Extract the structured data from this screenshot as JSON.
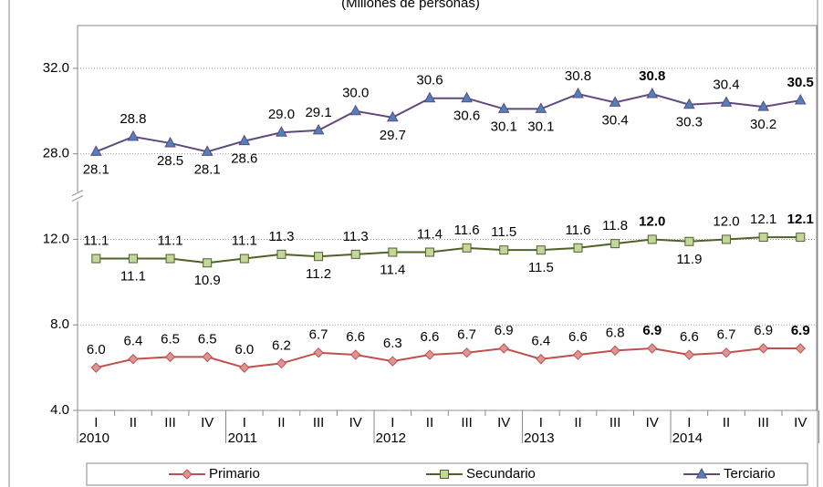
{
  "chart_data": {
    "type": "line",
    "title": "(Millones de personas)",
    "categories": [
      "I",
      "II",
      "III",
      "IV",
      "I",
      "II",
      "III",
      "IV",
      "I",
      "II",
      "III",
      "IV",
      "I",
      "II",
      "III",
      "IV",
      "I",
      "II",
      "III",
      "IV"
    ],
    "category_groups": [
      "2010",
      "2011",
      "2012",
      "2013",
      "2014"
    ],
    "ylim": [
      4,
      34
    ],
    "ybreak": [
      14,
      26
    ],
    "yticks": [
      {
        "value": 4,
        "label": "4.0"
      },
      {
        "value": 8,
        "label": "8.0"
      },
      {
        "value": 12,
        "label": "12.0"
      },
      {
        "value": 28,
        "label": "28.0"
      },
      {
        "value": 32,
        "label": "32.0"
      }
    ],
    "grid": true,
    "legend": "bottom",
    "series": [
      {
        "name": "Primario",
        "color": "#c0504d",
        "marker_color": "#d99694",
        "marker": "diamond",
        "values": [
          6.0,
          6.4,
          6.5,
          6.5,
          6.0,
          6.2,
          6.7,
          6.6,
          6.3,
          6.6,
          6.7,
          6.9,
          6.4,
          6.6,
          6.8,
          6.9,
          6.6,
          6.7,
          6.9,
          6.9
        ],
        "value_labels": [
          "6.0",
          "6.4",
          "6.5",
          "6.5",
          "6.0",
          "6.2",
          "6.7",
          "6.6",
          "6.3",
          "6.6",
          "6.7",
          "6.9",
          "6.4",
          "6.6",
          "6.8",
          "6.9",
          "6.6",
          "6.7",
          "6.9",
          "6.9"
        ]
      },
      {
        "name": "Secundario",
        "color": "#4f6228",
        "marker_color": "#c3d69b",
        "marker": "square",
        "values": [
          11.1,
          11.1,
          11.1,
          10.9,
          11.1,
          11.3,
          11.2,
          11.3,
          11.4,
          11.4,
          11.6,
          11.5,
          11.5,
          11.6,
          11.8,
          12.0,
          11.9,
          12.0,
          12.1,
          12.1
        ],
        "value_labels": [
          "11.1",
          "11.1",
          "11.1",
          "10.9",
          "11.1",
          "11.3",
          "11.2",
          "11.3",
          "11.4",
          "11.4",
          "11.6",
          "11.5",
          "11.5",
          "11.6",
          "11.8",
          "12.0",
          "11.9",
          "12.0",
          "12.1",
          "12.1"
        ]
      },
      {
        "name": "Terciario",
        "color": "#604a7b",
        "marker_color": "#4f81bd",
        "marker": "triangle",
        "values": [
          28.1,
          28.8,
          28.5,
          28.1,
          28.6,
          29.0,
          29.1,
          30.0,
          29.7,
          30.6,
          30.6,
          30.1,
          30.1,
          30.8,
          30.4,
          30.8,
          30.3,
          30.4,
          30.2,
          30.5
        ],
        "value_labels": [
          "28.1",
          "28.8",
          "28.5",
          "28.1",
          "28.6",
          "29.0",
          "29.1",
          "30.0",
          "29.7",
          "30.6",
          "30.6",
          "30.1",
          "30.1",
          "30.8",
          "30.4",
          "30.8",
          "30.3",
          "30.4",
          "30.2",
          "30.5"
        ]
      }
    ]
  }
}
